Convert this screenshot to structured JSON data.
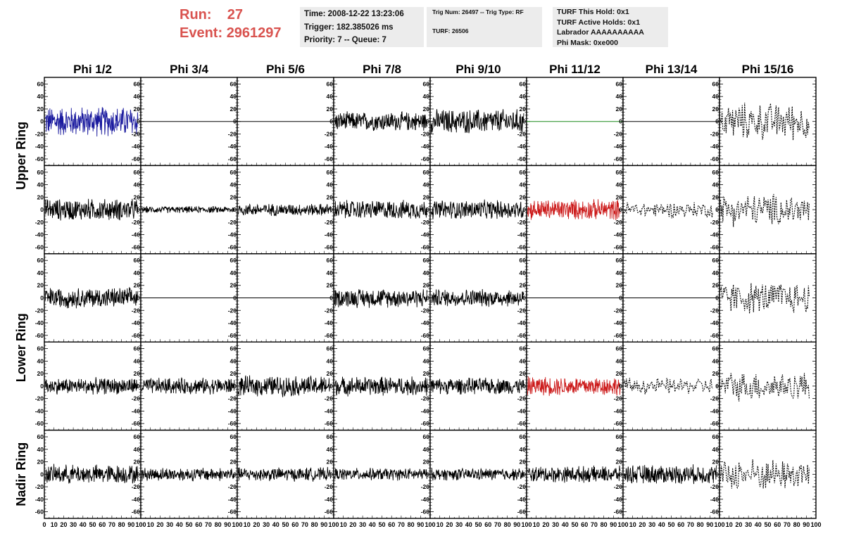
{
  "header": {
    "run_label": "Run:",
    "run_value": "27",
    "event_label": "Event:",
    "event_value": "2961297"
  },
  "info_time": {
    "time": "Time: 2008-12-22 13:23:06",
    "trigger": "Trigger: 182.385026 ms",
    "priority": "Priority: 7 -- Queue: 7"
  },
  "info_trig": {
    "trig": "Trig Num: 26497 -- Trig Type: RF",
    "turf": "TURF: 26506"
  },
  "info_turf": {
    "hold": "TURF This Hold: 0x1",
    "active": "TURF Active Holds: 0x1",
    "labrador": "Labrador AAAAAAAAAA",
    "phimask": "Phi Mask: 0xe000"
  },
  "column_titles": [
    "Phi 1/2",
    "Phi 3/4",
    "Phi 5/6",
    "Phi 7/8",
    "Phi 9/10",
    "Phi 11/12",
    "Phi 13/14",
    "Phi 15/16"
  ],
  "ring_labels": [
    "Upper Ring",
    "Lower Ring",
    "Nadir Ring"
  ],
  "colors": {
    "blue_trace": "#1a1a9e",
    "red_trace": "#cc1a1a",
    "green_trace": "#1a8a1a",
    "black_trace": "#000000",
    "run_text": "#d9534f",
    "info_bg": "#ececec"
  },
  "chart_data": {
    "type": "line",
    "xlim": [
      0,
      100
    ],
    "ylim": [
      -65,
      65
    ],
    "y_ticks": [
      -60,
      -40,
      -20,
      0,
      20,
      40,
      60
    ],
    "x_ticks": [
      0,
      10,
      20,
      30,
      40,
      50,
      60,
      70,
      80,
      90,
      100
    ],
    "y_tick_labels": [
      "-60",
      "-40",
      "-20",
      "0",
      "20",
      "40",
      "60"
    ],
    "x_tick_labels": [
      "0",
      "10",
      "20",
      "30",
      "40",
      "50",
      "60",
      "70",
      "80",
      "90",
      "100"
    ],
    "grid": false,
    "rows": 5,
    "cols": 8,
    "panels": [
      [
        {
          "style": "blue",
          "amplitude": 22
        },
        {
          "style": "flat"
        },
        {
          "style": "flat"
        },
        {
          "style": "black",
          "amplitude": 14
        },
        {
          "style": "black",
          "amplitude": 18
        },
        {
          "style": "green-flat"
        },
        {
          "style": "flat"
        },
        {
          "style": "dashed",
          "amplitude": 28
        }
      ],
      [
        {
          "style": "black",
          "amplitude": 16
        },
        {
          "style": "black",
          "amplitude": 5
        },
        {
          "style": "black",
          "amplitude": 9
        },
        {
          "style": "black",
          "amplitude": 14
        },
        {
          "style": "black",
          "amplitude": 14
        },
        {
          "style": "red",
          "amplitude": 15
        },
        {
          "style": "dashed",
          "amplitude": 12
        },
        {
          "style": "dashed",
          "amplitude": 24
        }
      ],
      [
        {
          "style": "black",
          "amplitude": 15
        },
        {
          "style": "flat"
        },
        {
          "style": "flat"
        },
        {
          "style": "black",
          "amplitude": 14
        },
        {
          "style": "black",
          "amplitude": 13
        },
        {
          "style": "flat"
        },
        {
          "style": "flat"
        },
        {
          "style": "dashed",
          "amplitude": 24
        }
      ],
      [
        {
          "style": "black",
          "amplitude": 12
        },
        {
          "style": "black",
          "amplitude": 12
        },
        {
          "style": "black",
          "amplitude": 15
        },
        {
          "style": "black",
          "amplitude": 14
        },
        {
          "style": "black",
          "amplitude": 12
        },
        {
          "style": "red",
          "amplitude": 14
        },
        {
          "style": "dashed",
          "amplitude": 12
        },
        {
          "style": "dashed",
          "amplitude": 22
        }
      ],
      [
        {
          "style": "black",
          "amplitude": 14
        },
        {
          "style": "black",
          "amplitude": 10
        },
        {
          "style": "black",
          "amplitude": 10
        },
        {
          "style": "black",
          "amplitude": 9
        },
        {
          "style": "black",
          "amplitude": 9
        },
        {
          "style": "black",
          "amplitude": 12
        },
        {
          "style": "black",
          "amplitude": 14
        },
        {
          "style": "dashed",
          "amplitude": 24
        }
      ]
    ]
  }
}
